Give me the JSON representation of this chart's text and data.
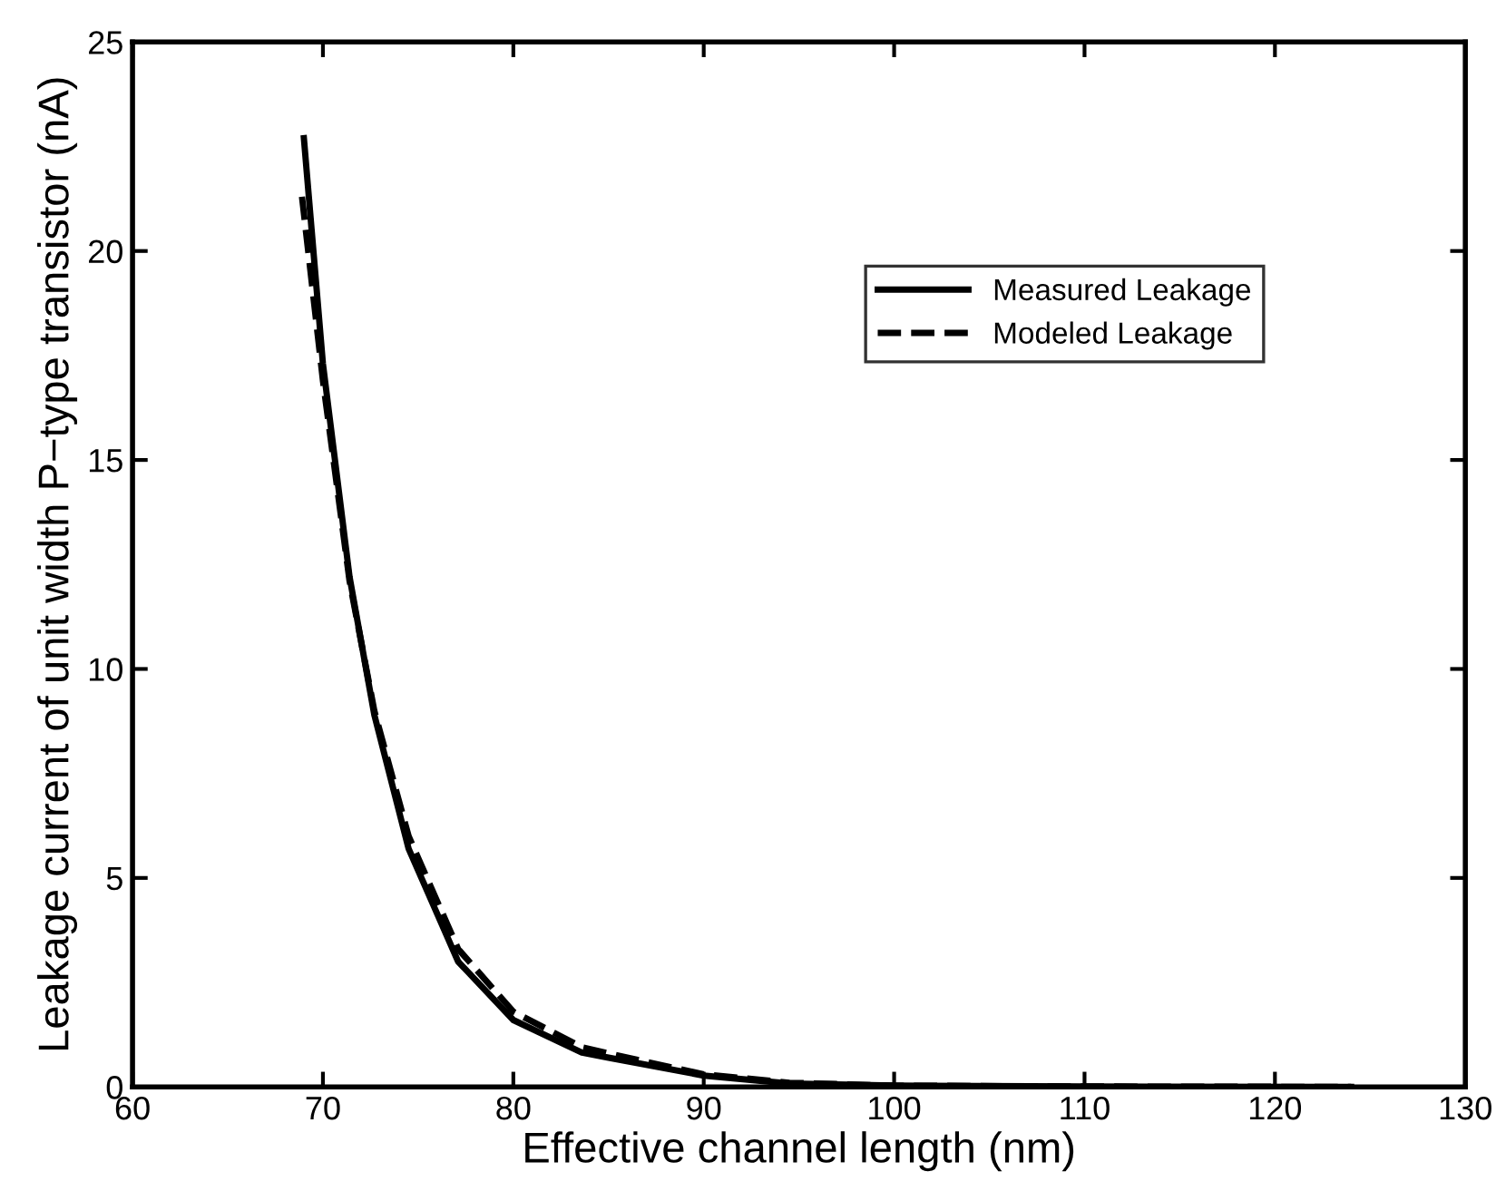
{
  "chart_data": {
    "type": "line",
    "xlabel": "Effective channel length (nm)",
    "ylabel": "Leakage current of unit width P−type transistor (nA)",
    "xlim": [
      60,
      130
    ],
    "xticks": [
      60,
      70,
      80,
      90,
      100,
      110,
      120,
      130
    ],
    "ylim": [
      0,
      25
    ],
    "yticks": [
      0,
      5,
      10,
      15,
      20,
      25
    ],
    "grid": false,
    "legend": "top right",
    "series": [
      {
        "name": "Measured Leakage",
        "color": "#000000",
        "line_style": "solid",
        "x": [
          69.0,
          70.0,
          71.4,
          72.7,
          74.5,
          77.1,
          80,
          83.6,
          85,
          90,
          94.5,
          100,
          110,
          124
        ],
        "values": [
          22.7,
          17.3,
          12.2,
          8.9,
          5.7,
          3.0,
          1.6,
          0.82,
          0.7,
          0.27,
          0.08,
          0.03,
          0.01,
          0.0
        ]
      },
      {
        "name": "Modeled Leakage",
        "color": "#000000",
        "line_style": "dashed",
        "x": [
          68.9,
          70.0,
          71.4,
          72.7,
          74.5,
          77.1,
          80,
          83.6,
          85,
          90,
          94.5,
          100,
          110,
          124
        ],
        "values": [
          21.3,
          16.9,
          12.1,
          9.0,
          6.0,
          3.3,
          1.8,
          0.95,
          0.8,
          0.3,
          0.1,
          0.03,
          0.01,
          0.0
        ]
      }
    ]
  }
}
